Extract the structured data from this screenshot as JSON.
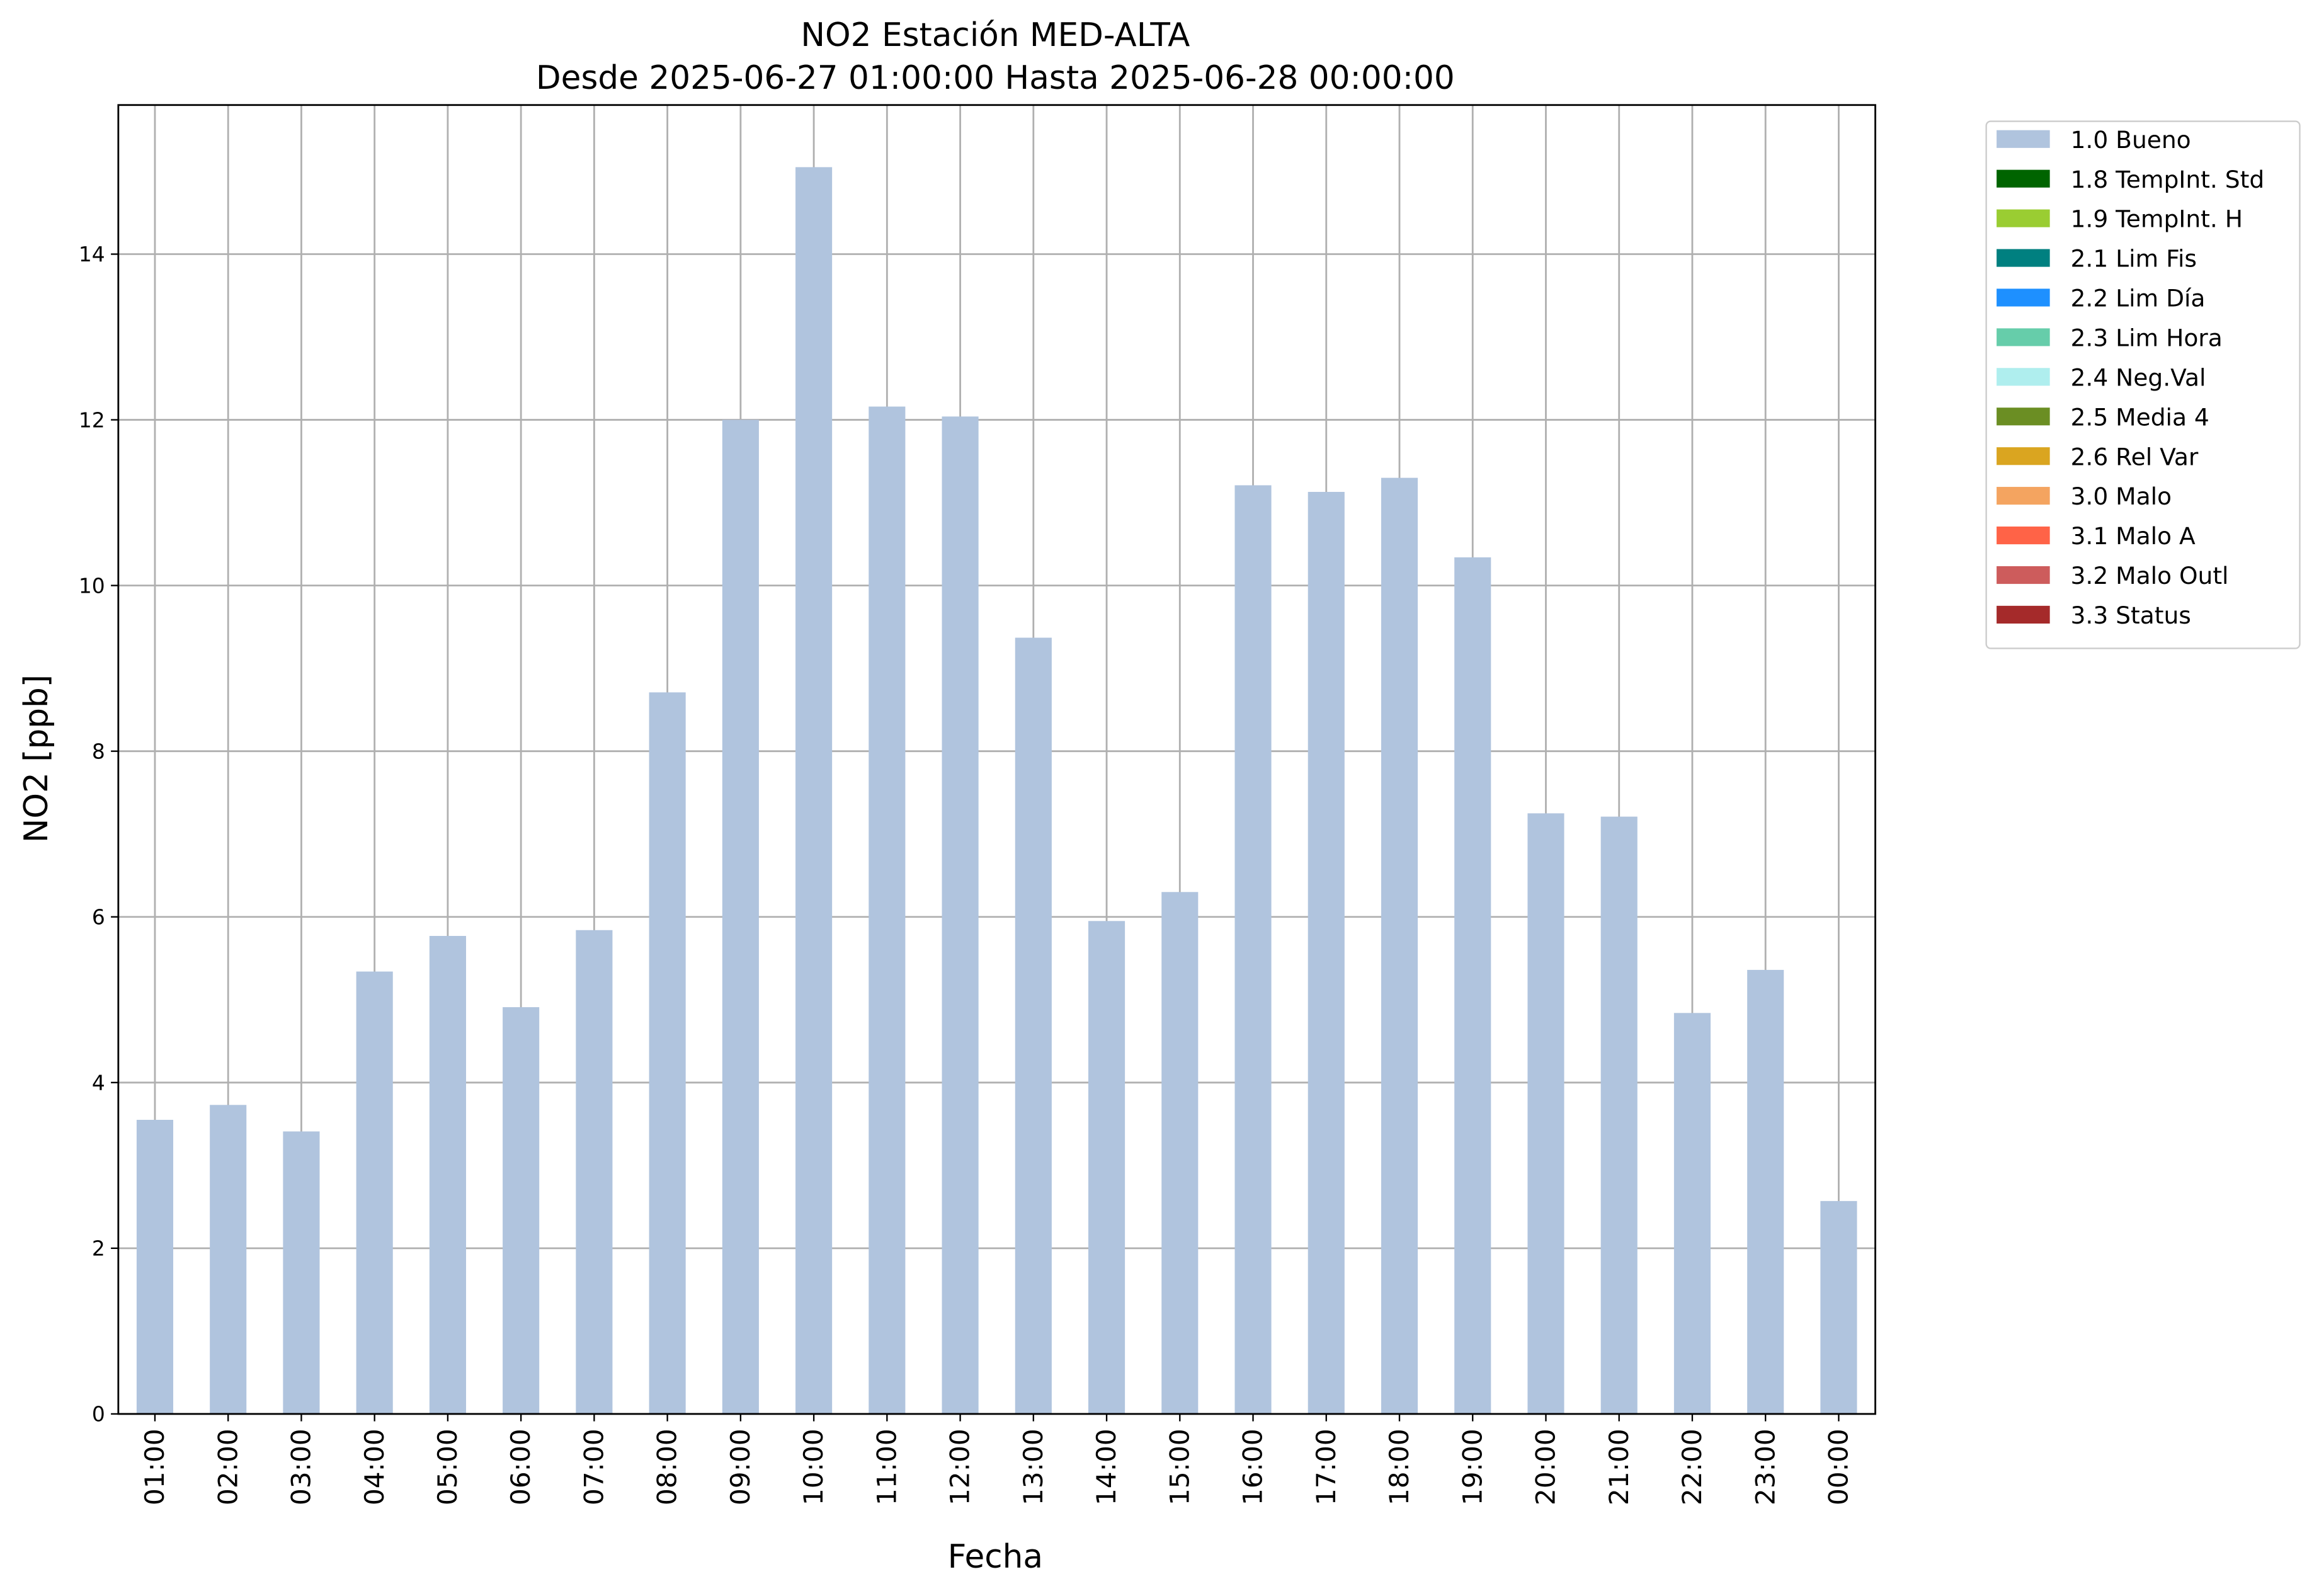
{
  "chart_data": {
    "type": "bar",
    "title": "NO2 Estación MED-ALTA",
    "subtitle": "Desde 2025-06-27 01:00:00 Hasta 2025-06-28 00:00:00",
    "x_label": "Fecha",
    "y_label": "NO2 [ppb]",
    "categories": [
      "01:00",
      "02:00",
      "03:00",
      "04:00",
      "05:00",
      "06:00",
      "07:00",
      "08:00",
      "09:00",
      "10:00",
      "11:00",
      "12:00",
      "13:00",
      "14:00",
      "15:00",
      "16:00",
      "17:00",
      "18:00",
      "19:00",
      "20:00",
      "21:00",
      "22:00",
      "23:00",
      "00:00"
    ],
    "values": [
      3.55,
      3.73,
      3.41,
      5.34,
      5.77,
      4.91,
      5.84,
      8.71,
      12.0,
      15.05,
      12.16,
      12.04,
      9.37,
      5.95,
      6.3,
      11.21,
      11.13,
      11.3,
      10.34,
      7.25,
      7.21,
      4.84,
      5.36,
      2.57
    ],
    "color": "#b0c4de",
    "ylim": [
      0,
      15.8
    ],
    "yticks": [
      0,
      2,
      4,
      6,
      8,
      10,
      12,
      14
    ],
    "grid": true,
    "legend_position": "outside-upper-right",
    "legend": [
      {
        "label": "1.0 Bueno",
        "color": "#b0c4de"
      },
      {
        "label": "1.8 TempInt. Std",
        "color": "#006400"
      },
      {
        "label": "1.9 TempInt. H",
        "color": "#9acd32"
      },
      {
        "label": "2.1 Lim Fis",
        "color": "#008080"
      },
      {
        "label": "2.2 Lim Día",
        "color": "#1e90ff"
      },
      {
        "label": "2.3 Lim Hora",
        "color": "#66cdaa"
      },
      {
        "label": "2.4 Neg.Val",
        "color": "#afeeee"
      },
      {
        "label": "2.5 Media 4",
        "color": "#6b8e23"
      },
      {
        "label": "2.6 Rel Var",
        "color": "#daa520"
      },
      {
        "label": "3.0 Malo",
        "color": "#f4a460"
      },
      {
        "label": "3.1 Malo A",
        "color": "#ff6347"
      },
      {
        "label": "3.2 Malo Outl",
        "color": "#cd5c5c"
      },
      {
        "label": "3.3 Status",
        "color": "#a52a2a"
      }
    ]
  }
}
